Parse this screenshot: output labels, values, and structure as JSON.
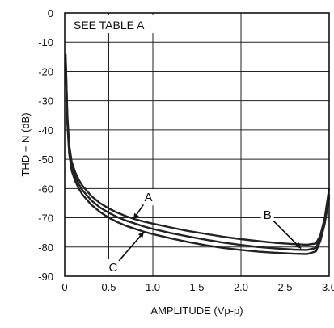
{
  "chart_data": {
    "type": "line",
    "title": "",
    "xlabel": "AMPLITUDE (Vp-p)",
    "ylabel": "THD + N (dB)",
    "xlim": [
      0,
      3.0
    ],
    "ylim": [
      -90,
      0
    ],
    "x_ticks": [
      0,
      0.5,
      1.0,
      1.5,
      2.0,
      2.5,
      3.0
    ],
    "x_tick_labels": [
      "0",
      "0.5",
      "1.0",
      "1.5",
      "2.0",
      "2.5",
      "3.0"
    ],
    "y_ticks": [
      0,
      -10,
      -20,
      -30,
      -40,
      -50,
      -60,
      -70,
      -80,
      -90
    ],
    "y_tick_labels": [
      "0",
      "-10",
      "-20",
      "-30",
      "-40",
      "-50",
      "-60",
      "-70",
      "-80",
      "-90"
    ],
    "grid": true,
    "note": "SEE TABLE A",
    "series": [
      {
        "name": "A",
        "color": "#222222",
        "x": [
          0.01,
          0.03,
          0.05,
          0.08,
          0.12,
          0.16,
          0.2,
          0.3,
          0.4,
          0.5,
          0.6,
          0.7,
          0.8,
          0.9,
          1.0,
          1.2,
          1.4,
          1.6,
          1.8,
          2.0,
          2.2,
          2.4,
          2.6,
          2.75,
          2.85,
          2.9,
          2.95,
          3.0
        ],
        "y": [
          -14,
          -35,
          -45,
          -51,
          -54.5,
          -57,
          -59,
          -62.5,
          -65,
          -66.8,
          -68.3,
          -69.5,
          -70.5,
          -71.3,
          -72,
          -73.3,
          -74.5,
          -75.5,
          -76.5,
          -77.3,
          -78,
          -78.6,
          -79,
          -79.2,
          -78.8,
          -76,
          -70,
          -60
        ]
      },
      {
        "name": "B",
        "color": "#222222",
        "x": [
          0.01,
          0.03,
          0.05,
          0.08,
          0.12,
          0.16,
          0.2,
          0.3,
          0.4,
          0.5,
          0.6,
          0.7,
          0.8,
          0.9,
          1.0,
          1.2,
          1.4,
          1.6,
          1.8,
          2.0,
          2.2,
          2.4,
          2.6,
          2.75,
          2.85,
          2.9,
          2.95,
          3.0
        ],
        "y": [
          -15,
          -36.5,
          -46.5,
          -52.5,
          -56,
          -58.5,
          -60.5,
          -64,
          -66.5,
          -68.3,
          -69.8,
          -71,
          -72,
          -73,
          -73.8,
          -75.2,
          -76.4,
          -77.5,
          -78.5,
          -79.3,
          -80,
          -80.5,
          -80.9,
          -81,
          -80.3,
          -77,
          -71,
          -62
        ]
      },
      {
        "name": "C",
        "color": "#222222",
        "x": [
          0.01,
          0.03,
          0.05,
          0.08,
          0.12,
          0.16,
          0.2,
          0.3,
          0.4,
          0.5,
          0.6,
          0.7,
          0.8,
          0.9,
          1.0,
          1.2,
          1.4,
          1.6,
          1.8,
          2.0,
          2.2,
          2.4,
          2.6,
          2.75,
          2.85,
          2.9,
          2.95,
          3.0
        ],
        "y": [
          -16,
          -38,
          -48,
          -54,
          -57.5,
          -60,
          -62,
          -65.5,
          -68,
          -70,
          -71.5,
          -72.8,
          -73.8,
          -74.8,
          -75.6,
          -77,
          -78.3,
          -79.4,
          -80.3,
          -81,
          -81.6,
          -82,
          -82.3,
          -82.4,
          -81.5,
          -78,
          -72,
          -63
        ]
      }
    ],
    "annotations": [
      {
        "text": "A",
        "label_at": [
          0.95,
          -63
        ],
        "arrow_to": [
          0.78,
          -70.5
        ]
      },
      {
        "text": "B",
        "label_at": [
          2.3,
          -69
        ],
        "arrow_to": [
          2.68,
          -80.5
        ]
      },
      {
        "text": "C",
        "label_at": [
          0.55,
          -87
        ],
        "arrow_to": [
          0.9,
          -74.8
        ]
      }
    ]
  }
}
